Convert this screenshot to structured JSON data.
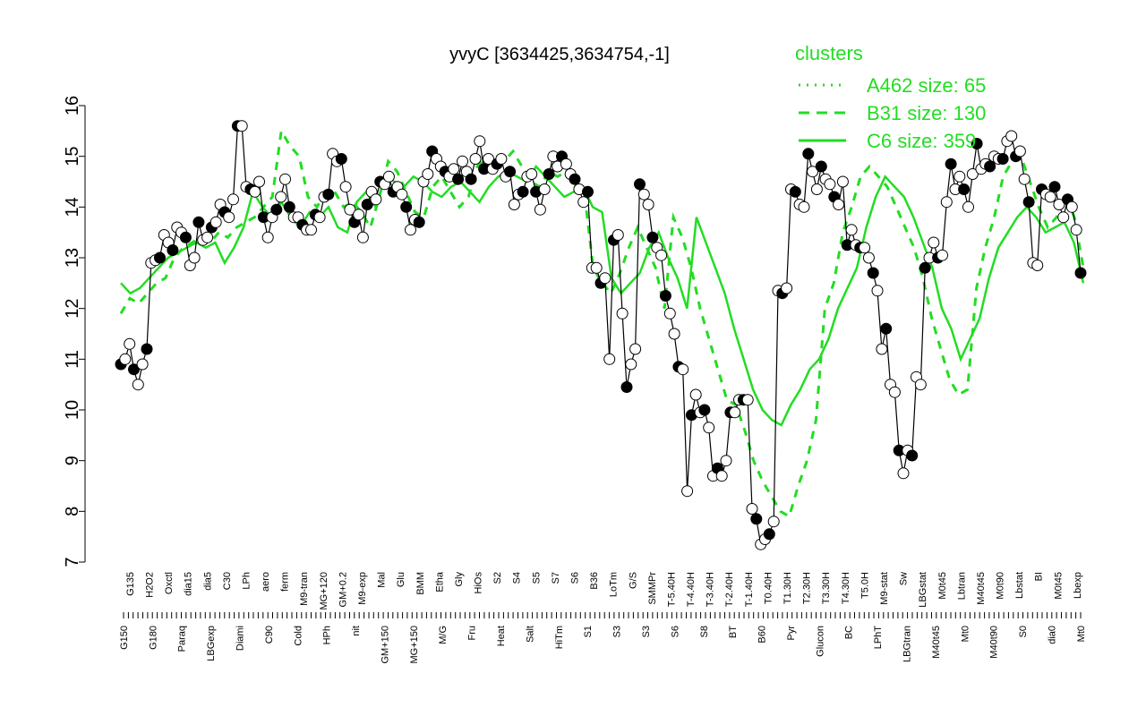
{
  "chart_data": {
    "type": "line",
    "title": "yvyC [3634425,3634754,-1]",
    "xlabel": "",
    "ylabel": "",
    "ylim": [
      7,
      16
    ],
    "y_ticks": [
      7,
      8,
      9,
      10,
      11,
      12,
      13,
      14,
      15,
      16
    ],
    "grid": false,
    "legend": {
      "title": "clusters",
      "placement": "top-right",
      "entries": [
        {
          "label": "A462 size: 65",
          "style": "dotted",
          "color": "#22dd22"
        },
        {
          "label": "B31 size: 130",
          "style": "dashed",
          "color": "#22dd22"
        },
        {
          "label": "C6 size: 359",
          "style": "solid",
          "color": "#22dd22"
        }
      ]
    },
    "x_labels_upper": [
      "G135",
      "H2O2",
      "Oxctl",
      "dia15",
      "dia5",
      "C30",
      "LPh",
      "aero",
      "ferm",
      "M9-tran",
      "MG+120",
      "GM+0.2",
      "M9-exp",
      "Mal",
      "Glu",
      "BMM",
      "Etha",
      "Gly",
      "HiOs",
      "S2",
      "S4",
      "S5",
      "S7",
      "S6",
      "B36",
      "LoTm",
      "G/S",
      "SMMPr",
      "T-5.40H",
      "T-4.40H",
      "T-3.40H",
      "T-2.40H",
      "T-1.40H",
      "T0.40H",
      "T1.30H",
      "T2.30H",
      "T3.30H",
      "T4.30H",
      "T5.0H",
      "M9-stat",
      "Sw",
      "LBGstat",
      "M0t45",
      "Lbtran",
      "M40t45",
      "M0t90",
      "Lbstat",
      "BI",
      "M0t45",
      "Lbexp"
    ],
    "x_labels_lower": [
      "G150",
      "G180",
      "Paraq",
      "LBGexp",
      "Diami",
      "C90",
      "Cold",
      "HPh",
      "nit",
      "GM+150",
      "MG+150",
      "M/G",
      "Fru",
      "Heat",
      "Salt",
      "HiTm",
      "S1",
      "S3",
      "S3",
      "S6",
      "S8",
      "BT",
      "B60",
      "Pyr",
      "Glucon",
      "BC",
      "LPhT",
      "LBGtran",
      "M40t45",
      "Mt0",
      "M40t90",
      "S0",
      "dia0",
      "Mt0"
    ],
    "series_black": [
      10.9,
      11.0,
      11.3,
      10.8,
      10.5,
      10.9,
      11.2,
      12.9,
      12.95,
      13.0,
      13.45,
      13.3,
      13.15,
      13.6,
      13.5,
      13.4,
      12.85,
      13.0,
      13.7,
      13.35,
      13.4,
      13.6,
      13.7,
      14.05,
      13.9,
      13.8,
      14.15,
      15.6,
      15.6,
      14.4,
      14.35,
      14.3,
      14.5,
      13.8,
      13.4,
      13.8,
      13.95,
      14.2,
      14.55,
      14.0,
      13.8,
      13.8,
      13.65,
      13.55,
      13.55,
      13.85,
      13.8,
      14.2,
      14.25,
      15.05,
      14.9,
      14.95,
      14.4,
      13.95,
      13.7,
      13.85,
      13.4,
      14.05,
      14.3,
      14.15,
      14.5,
      14.45,
      14.6,
      14.3,
      14.4,
      14.25,
      14.0,
      13.55,
      13.75,
      13.7,
      14.5,
      14.65,
      15.1,
      14.95,
      14.8,
      14.7,
      14.6,
      14.75,
      14.55,
      14.9,
      14.7,
      14.55,
      14.95,
      15.3,
      14.75,
      14.95,
      14.75,
      14.85,
      14.95,
      14.6,
      14.7,
      14.05,
      14.25,
      14.3,
      14.6,
      14.65,
      14.3,
      13.95,
      14.35,
      14.65,
      15.0,
      14.8,
      15.0,
      14.85,
      14.65,
      14.55,
      14.35,
      14.1,
      14.3,
      12.8,
      12.8,
      12.5,
      12.6,
      11.0,
      13.35,
      13.45,
      11.9,
      10.45,
      10.9,
      11.2,
      14.45,
      14.25,
      14.05,
      13.4,
      13.2,
      13.05,
      12.25,
      11.9,
      11.5,
      10.85,
      10.8,
      8.4,
      9.9,
      10.3,
      9.95,
      10.0,
      9.65,
      8.7,
      8.85,
      8.7,
      9.0,
      9.95,
      9.95,
      10.2,
      10.2,
      10.2,
      8.05,
      7.85,
      7.35,
      7.45,
      7.55,
      7.8,
      12.35,
      12.3,
      12.4,
      14.35,
      14.3,
      14.05,
      14.0,
      15.05,
      14.7,
      14.35,
      14.8,
      14.55,
      14.45,
      14.2,
      14.05,
      14.5,
      13.25,
      13.55,
      13.25,
      13.2,
      13.2,
      13.0,
      12.7,
      12.35,
      11.2,
      11.6,
      10.5,
      10.35,
      9.2,
      8.75,
      9.2,
      9.1,
      10.65,
      10.5,
      12.8,
      13.0,
      13.3,
      13.0,
      13.05,
      14.1,
      14.85,
      14.35,
      14.6,
      14.35,
      14.0,
      14.65,
      15.25,
      14.75,
      14.85,
      14.8,
      15.0,
      14.95,
      14.95,
      15.3,
      15.4,
      15.0,
      15.1,
      14.55,
      14.1,
      12.9,
      12.85,
      14.35,
      14.25,
      14.2,
      14.4,
      14.05,
      13.8,
      14.15,
      14.0,
      13.55,
      12.7
    ],
    "series_b31": [
      11.9,
      12.2,
      12.1,
      12.3,
      12.5,
      12.6,
      13.0,
      13.2,
      13.3,
      13.4,
      13.3,
      13.5,
      13.4,
      13.6,
      13.7,
      13.8,
      14.0,
      14.2,
      15.5,
      15.2,
      15.0,
      14.2,
      14.0,
      14.3,
      14.3,
      14.0,
      14.1,
      13.9,
      13.6,
      14.2,
      14.9,
      14.7,
      14.3,
      13.9,
      13.8,
      14.4,
      14.6,
      14.3,
      14.0,
      14.2,
      14.8,
      15.0,
      14.8,
      14.9,
      15.1,
      14.8,
      14.5,
      14.4,
      14.7,
      14.6,
      14.7,
      14.4,
      14.3,
      12.8,
      12.5,
      12.3,
      12.7,
      13.2,
      13.6,
      13.2,
      12.8,
      12.0,
      13.8,
      13.4,
      12.8,
      12.0,
      11.4,
      10.8,
      10.2,
      10.1,
      9.6,
      9.0,
      8.6,
      8.3,
      8.0,
      7.9,
      8.5,
      9.0,
      9.8,
      12.0,
      12.5,
      13.5,
      14.0,
      14.6,
      14.8,
      14.6,
      14.4,
      14.0,
      13.6,
      13.2,
      12.6,
      11.8,
      11.2,
      10.6,
      10.3,
      10.4,
      12.4,
      13.2,
      13.8,
      14.6,
      14.9,
      15.0,
      14.5,
      14.0,
      13.6,
      13.8,
      14.2,
      13.8,
      12.8
    ],
    "series_c6": [
      12.5,
      12.3,
      12.4,
      12.6,
      12.8,
      13.0,
      13.1,
      13.2,
      13.3,
      13.2,
      13.3,
      12.9,
      13.2,
      13.6,
      14.3,
      14.0,
      13.8,
      14.1,
      13.8,
      13.6,
      13.9,
      13.8,
      14.0,
      13.6,
      13.5,
      14.1,
      14.3,
      14.0,
      14.6,
      14.5,
      14.4,
      14.6,
      14.5,
      14.3,
      14.2,
      14.4,
      14.5,
      14.3,
      14.1,
      14.4,
      14.6,
      14.7,
      14.6,
      14.5,
      14.8,
      14.6,
      14.4,
      14.2,
      14.3,
      14.4,
      14.0,
      13.9,
      12.6,
      12.3,
      12.5,
      12.7,
      13.2,
      13.5,
      13.0,
      12.6,
      12.0,
      13.8,
      13.3,
      12.8,
      12.3,
      11.6,
      11.0,
      10.4,
      10.0,
      9.8,
      9.7,
      10.1,
      10.4,
      10.8,
      11.0,
      11.4,
      12.0,
      12.4,
      12.8,
      13.6,
      14.2,
      14.6,
      14.4,
      14.2,
      13.8,
      13.3,
      12.8,
      12.0,
      11.6,
      11.0,
      11.4,
      11.8,
      12.6,
      13.2,
      13.5,
      13.8,
      14.0,
      13.8,
      13.5,
      13.6,
      13.7,
      13.3,
      12.5
    ]
  }
}
